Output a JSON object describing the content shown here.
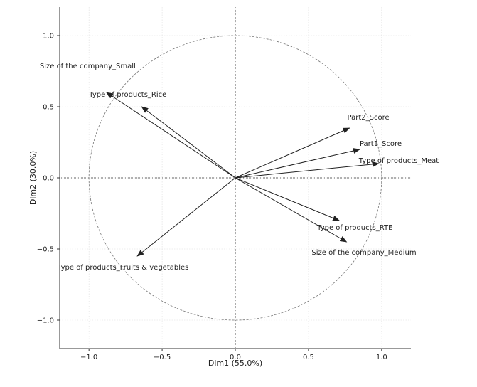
{
  "chart_data": {
    "type": "scatter",
    "subtype": "correlation-circle",
    "title": "",
    "xlabel": "Dim1 (55.0%)",
    "ylabel": "Dim2 (30.0%)",
    "xlim": [
      -1.2,
      1.2
    ],
    "ylim": [
      -1.2,
      1.2
    ],
    "xticks": [
      -1.0,
      -0.5,
      0.0,
      0.5,
      1.0
    ],
    "yticks": [
      -1.0,
      -0.5,
      0.0,
      0.5,
      1.0
    ],
    "xtick_labels": [
      "−1.0",
      "−0.5",
      "0.0",
      "0.5",
      "1.0"
    ],
    "ytick_labels": [
      "−1.0",
      "−0.5",
      "0.0",
      "0.5",
      "1.0"
    ],
    "grid": true,
    "unit_circle": true,
    "vectors": [
      {
        "name": "Size of the company_Small",
        "x": -0.88,
        "y": 0.6
      },
      {
        "name": "Type of products_Rice",
        "x": -0.64,
        "y": 0.5
      },
      {
        "name": "Part2_Score",
        "x": 0.78,
        "y": 0.35
      },
      {
        "name": "Part1_Score",
        "x": 0.85,
        "y": 0.2
      },
      {
        "name": "Type of products_Meat",
        "x": 0.98,
        "y": 0.1
      },
      {
        "name": "Type of products_RTE",
        "x": 0.71,
        "y": -0.3
      },
      {
        "name": "Size of the company_Medium",
        "x": 0.76,
        "y": -0.45
      },
      {
        "name": "Type of products_Fruits & vegetables",
        "x": -0.67,
        "y": -0.55
      }
    ]
  }
}
